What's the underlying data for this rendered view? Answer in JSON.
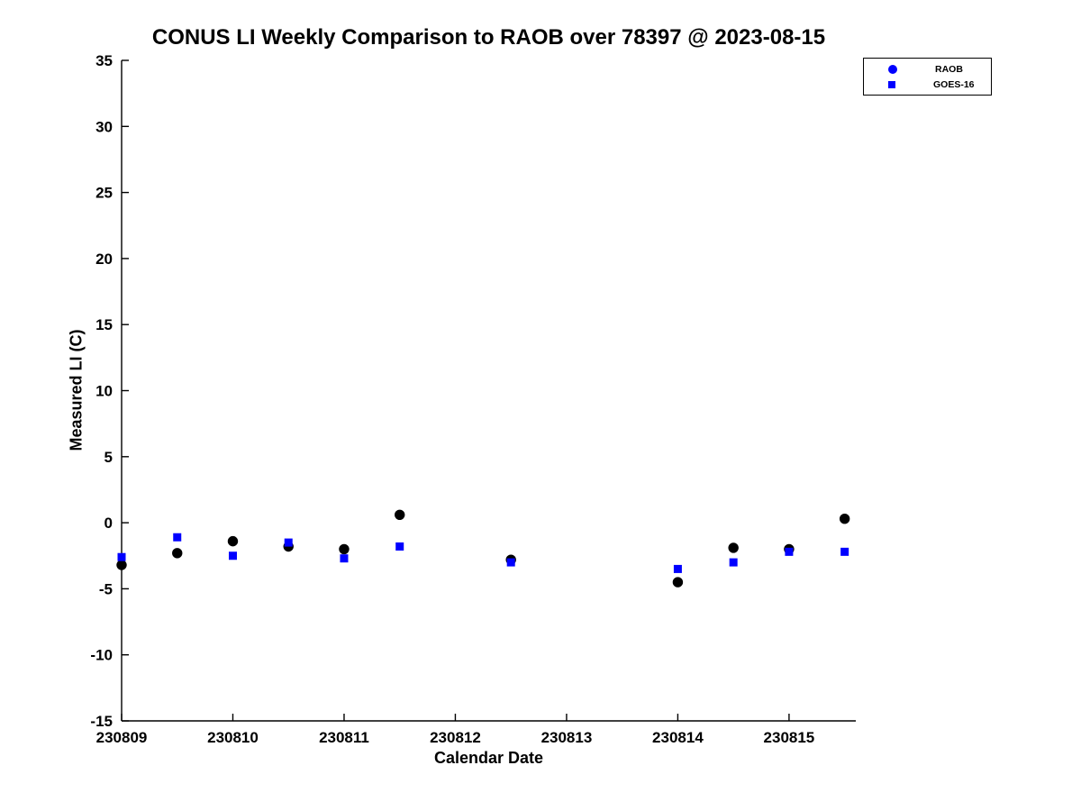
{
  "chart_data": {
    "type": "scatter",
    "title": "CONUS LI Weekly Comparison to RAOB over 78397 @ 2023-08-15",
    "xlabel": "Calendar Date",
    "ylabel": "Measured LI (C)",
    "xlim": [
      230809,
      230815.6
    ],
    "ylim": [
      -15,
      35
    ],
    "xticks": [
      230809,
      230810,
      230811,
      230812,
      230813,
      230814,
      230815
    ],
    "yticks": [
      -15,
      -10,
      -5,
      0,
      5,
      10,
      15,
      20,
      25,
      30,
      35
    ],
    "grid": false,
    "legend_position": "top-right",
    "axis_color": "#000000",
    "series": [
      {
        "name": "RAOB",
        "marker": "circle",
        "color": "#000000",
        "legend_marker_color": "#0000ff",
        "x": [
          230809.0,
          230809.5,
          230810.0,
          230810.5,
          230811.0,
          230811.5,
          230812.5,
          230814.0,
          230814.5,
          230815.0,
          230815.5
        ],
        "y": [
          -3.2,
          -2.3,
          -1.4,
          -1.8,
          -2.0,
          0.6,
          -2.8,
          -4.5,
          -1.9,
          -2.0,
          0.3
        ]
      },
      {
        "name": "GOES-16",
        "marker": "square",
        "color": "#0000ff",
        "legend_marker_color": "#0000ff",
        "x": [
          230809.0,
          230809.5,
          230810.0,
          230810.5,
          230811.0,
          230811.5,
          230812.5,
          230814.0,
          230814.5,
          230815.0,
          230815.5
        ],
        "y": [
          -2.6,
          -1.1,
          -2.5,
          -1.5,
          -2.7,
          -1.8,
          -3.0,
          -3.5,
          -3.0,
          -2.2,
          -2.2
        ]
      }
    ]
  }
}
